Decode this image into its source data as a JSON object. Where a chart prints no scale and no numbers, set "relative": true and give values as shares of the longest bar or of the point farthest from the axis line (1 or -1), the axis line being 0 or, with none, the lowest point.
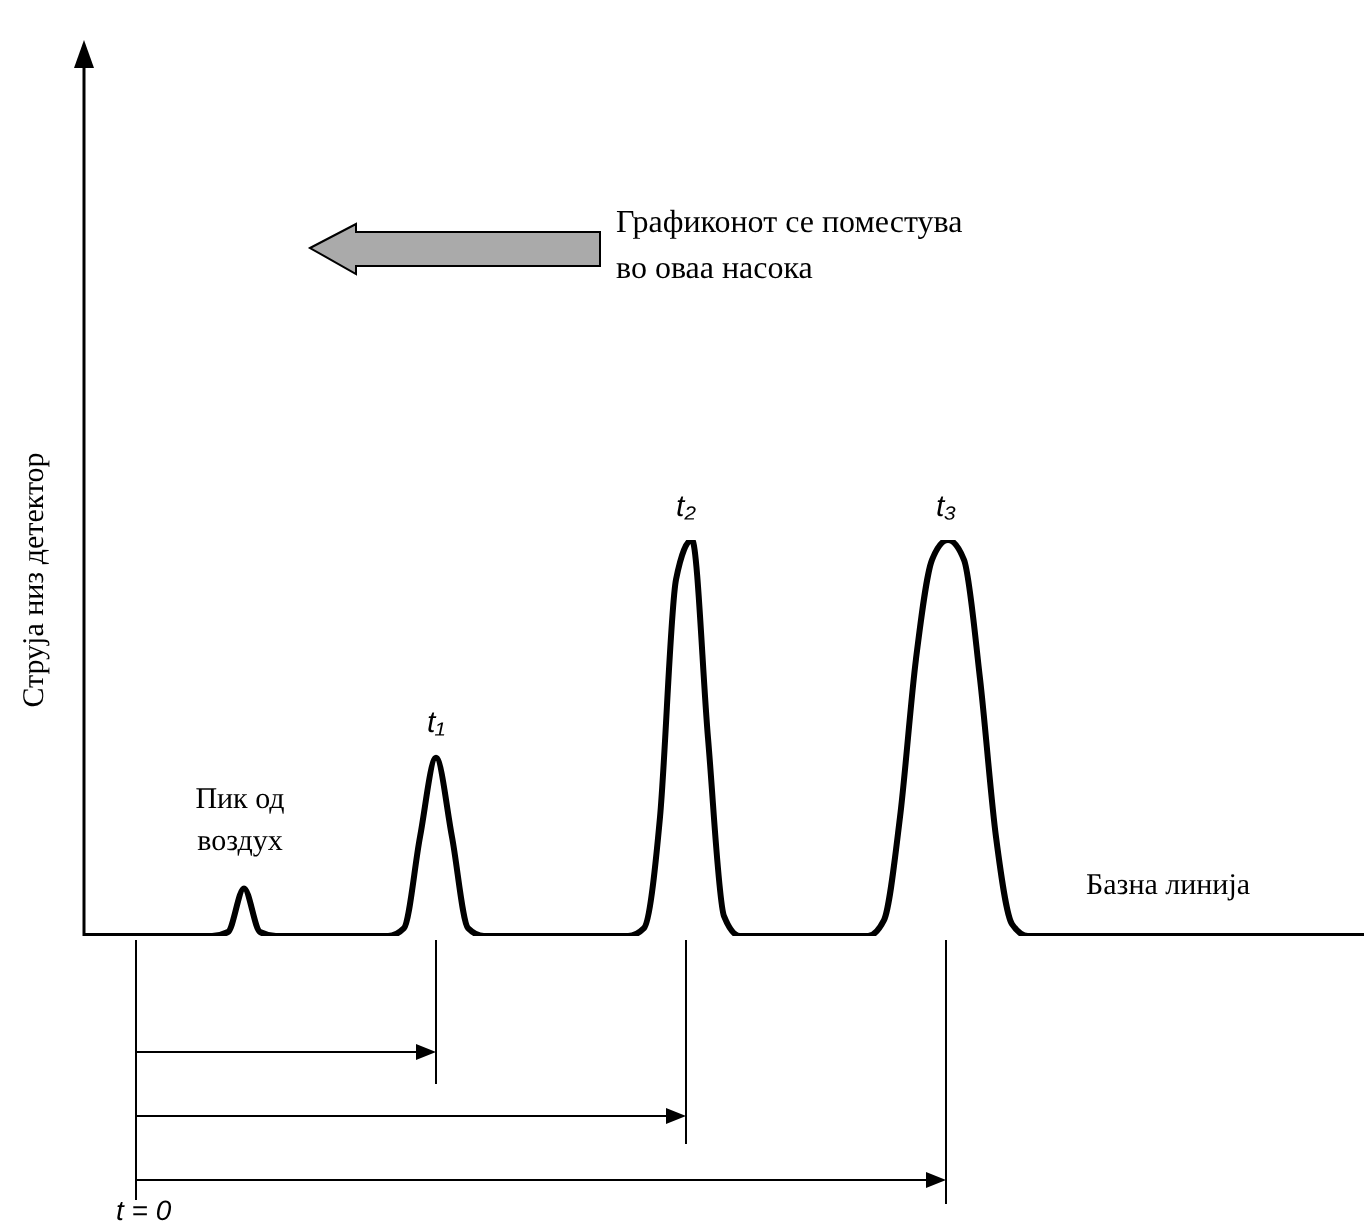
{
  "chart_data": {
    "type": "line",
    "relative": true,
    "ylabel": "Струја низ детектор",
    "annotations": [
      "Графиконот се поместува во оваа насока",
      "Пик од воздух",
      "Базна линија",
      "t₁",
      "t₂",
      "t₃",
      "t = 0"
    ],
    "categories": [
      null,
      null,
      null,
      null,
      null,
      null,
      null,
      null,
      null,
      null,
      null,
      null,
      null,
      null,
      null,
      null,
      null,
      null,
      null,
      null,
      null,
      null,
      null,
      null,
      null,
      null,
      null,
      null,
      null,
      null,
      null,
      null,
      null,
      null,
      null,
      null,
      null,
      null,
      null,
      null,
      null,
      null,
      null,
      null,
      null,
      null,
      null,
      null,
      null,
      null,
      null,
      null,
      null,
      null,
      null,
      null,
      null,
      null,
      null,
      null,
      null,
      null,
      null,
      null,
      null,
      null,
      null,
      null,
      null,
      null,
      null,
      null,
      null,
      null,
      null,
      null,
      null,
      null,
      null,
      null,
      null
    ],
    "series": [
      {
        "color": "#000000",
        "values": [
          0,
          0,
          0,
          0,
          0,
          0,
          0,
          0,
          0,
          0.01,
          0.12,
          0.01,
          0,
          0,
          0,
          0,
          0,
          0,
          0,
          0,
          0.02,
          0.25,
          0.45,
          0.25,
          0.02,
          0,
          0,
          0,
          0,
          0,
          0,
          0,
          0,
          0,
          0,
          0.02,
          0.3,
          0.9,
          1,
          0.5,
          0.05,
          0,
          0,
          0,
          0,
          0,
          0,
          0,
          0,
          0,
          0.04,
          0.3,
          0.7,
          0.95,
          1,
          0.95,
          0.65,
          0.25,
          0.03,
          0,
          0,
          0,
          0,
          0,
          0,
          0,
          0,
          0,
          0,
          0,
          0,
          0,
          0,
          0,
          0,
          0,
          0,
          0,
          0,
          0,
          0
        ]
      }
    ]
  }
}
